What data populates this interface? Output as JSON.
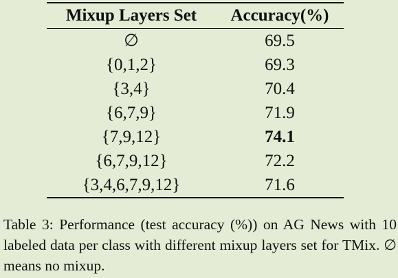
{
  "table": {
    "header": [
      "Mixup Layers Set",
      "Accuracy(%)"
    ],
    "rows": [
      [
        "∅",
        "69.5"
      ],
      [
        "{0,1,2}",
        "69.3"
      ],
      [
        "{3,4}",
        "70.4"
      ],
      [
        "{6,7,9}",
        "71.9"
      ],
      [
        "{7,9,12}",
        "74.1"
      ],
      [
        "{6,7,9,12}",
        "72.2"
      ],
      [
        "{3,4,6,7,9,12}",
        "71.6"
      ]
    ]
  },
  "caption": "Table 3: Performance (test accuracy (%)) on AG News with 10 labeled data per class with different mixup layers set for TMix. ∅ means no mixup."
}
